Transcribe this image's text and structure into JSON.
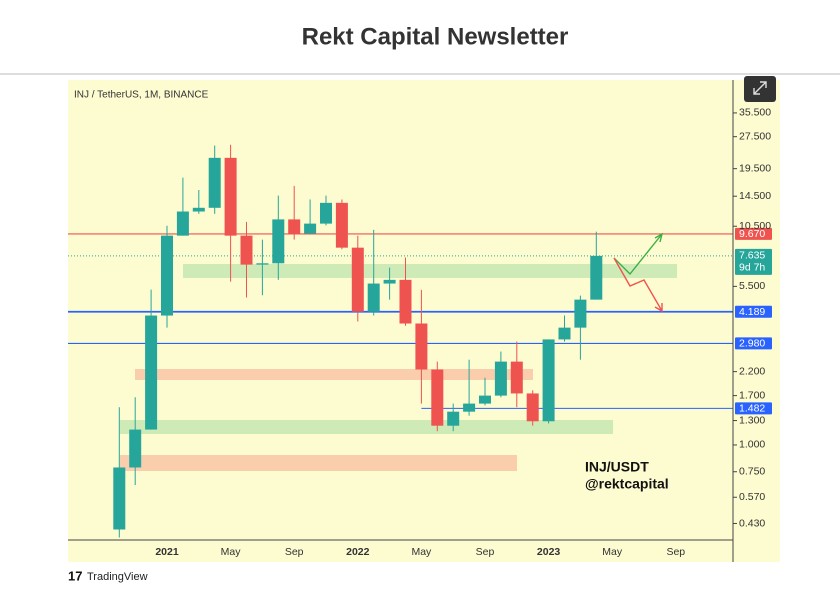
{
  "page_title": "Rekt Capital Newsletter",
  "chart_data": {
    "type": "candlestick",
    "title": "INJ / TetherUS, 1M, BINANCE",
    "annotation": [
      "INJ/USDT",
      "@rektcapital"
    ],
    "brand": "TradingView",
    "up_color": "#26a69a",
    "down_color": "#ef5350",
    "log_scale": true,
    "grid": false,
    "categories": [
      null,
      null,
      null,
      "2021",
      null,
      null,
      null,
      "May",
      null,
      null,
      null,
      "Sep",
      null,
      null,
      null,
      "2022",
      null,
      null,
      null,
      "May",
      null,
      null,
      null,
      "Sep",
      null,
      null,
      null,
      "2023",
      null,
      null,
      null,
      "May",
      null,
      null,
      null,
      "Sep"
    ],
    "open": [
      0.403,
      0.785,
      1.18,
      4.02,
      9.49,
      12.3,
      12.8,
      21.9,
      9.49,
      6.95,
      7.05,
      11.3,
      9.7,
      10.8,
      13.5,
      8.34,
      4.19,
      5.67,
      5.9,
      3.69,
      2.25,
      1.23,
      1.43,
      1.56,
      1.7,
      2.45,
      1.74,
      1.29,
      3.11,
      3.53,
      4.77,
      null,
      null,
      null,
      null,
      null
    ],
    "high": [
      1.5,
      1.67,
      5.31,
      10.56,
      17.7,
      15.5,
      25.0,
      25.2,
      11.0,
      9.09,
      14.6,
      16.2,
      14.0,
      14.6,
      14.0,
      9.49,
      10.1,
      6.73,
      7.5,
      5.3,
      2.45,
      1.56,
      2.5,
      2.06,
      2.73,
      3.04,
      1.8,
      3.11,
      4.02,
      4.98,
      9.9,
      null,
      null,
      null,
      null,
      null
    ],
    "low": [
      0.37,
      0.65,
      1.18,
      3.53,
      9.49,
      12.0,
      12.0,
      5.79,
      4.88,
      5.0,
      5.9,
      9.1,
      9.6,
      10.6,
      8.2,
      3.77,
      4.02,
      4.77,
      3.6,
      1.56,
      1.16,
      1.16,
      1.37,
      1.53,
      1.67,
      1.5,
      1.23,
      1.26,
      3.04,
      2.5,
      4.77,
      null,
      null,
      null,
      null,
      null
    ],
    "close": [
      0.785,
      1.18,
      4.02,
      9.49,
      12.3,
      12.8,
      21.9,
      9.49,
      6.95,
      7.05,
      11.3,
      9.7,
      10.8,
      13.5,
      8.34,
      4.19,
      5.67,
      5.9,
      3.69,
      2.25,
      1.23,
      1.43,
      1.56,
      1.7,
      2.45,
      1.74,
      1.29,
      3.11,
      3.53,
      4.77,
      7.635,
      null,
      null,
      null,
      null,
      null
    ],
    "ylim": [
      0.36,
      49.5
    ],
    "yticks": [
      {
        "value": 35.5,
        "label": "35.500"
      },
      {
        "value": 27.5,
        "label": "27.500"
      },
      {
        "value": 19.5,
        "label": "19.500"
      },
      {
        "value": 14.5,
        "label": "14.500"
      },
      {
        "value": 10.5,
        "label": "10.500"
      },
      {
        "value": 5.5,
        "label": "5.500"
      },
      {
        "value": 2.2,
        "label": "2.200"
      },
      {
        "value": 1.7,
        "label": "1.700"
      },
      {
        "value": 1.3,
        "label": "1.300"
      },
      {
        "value": 1.0,
        "label": "1.000"
      },
      {
        "value": 0.75,
        "label": "0.750"
      },
      {
        "value": 0.57,
        "label": "0.570"
      },
      {
        "value": 0.43,
        "label": "0.430"
      }
    ],
    "levels": [
      {
        "value": 9.67,
        "label": "9.670",
        "color": "#ef5350"
      },
      {
        "value": 4.189,
        "label": "4.189",
        "color": "#2962ff"
      },
      {
        "value": 2.98,
        "label": "2.980",
        "color": "#2962ff"
      },
      {
        "value": 1.482,
        "label": "1.482",
        "color": "#2962ff"
      }
    ],
    "current_price": {
      "value": 7.635,
      "label": "7.635",
      "countdown": "9d 7h",
      "color": "#26a69a"
    }
  }
}
